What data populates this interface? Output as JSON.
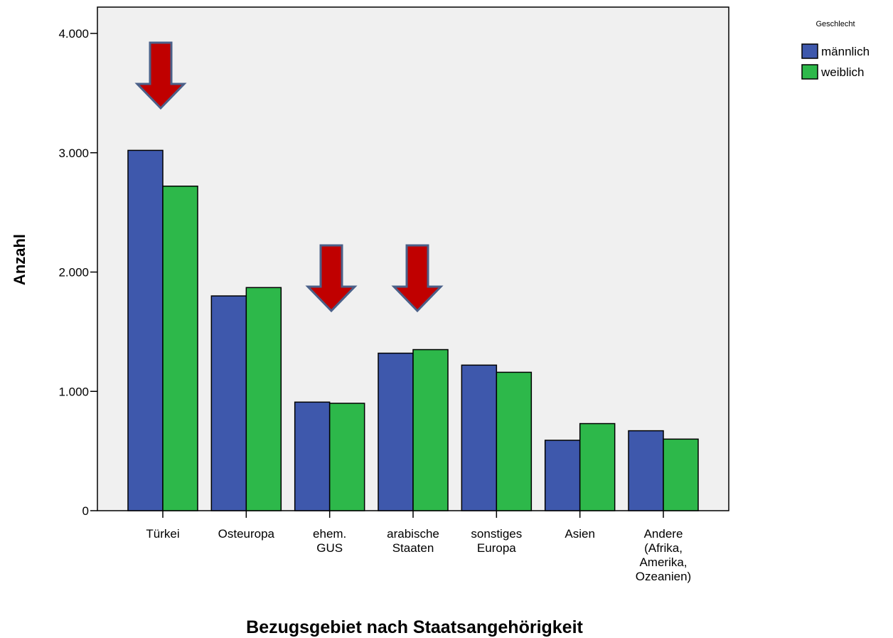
{
  "chart_data": {
    "type": "bar",
    "x_label": "Bezugsgebiet nach Staatsangehörigkeit",
    "y_label": "Anzahl",
    "legend_title": "Geschlecht",
    "categories": [
      "Türkei",
      "Osteuropa",
      "ehem.\nGUS",
      "arabische\nStaaten",
      "sonstiges\nEuropa",
      "Asien",
      "Andere\n(Afrika,\nAmerika,\nOzeanien)"
    ],
    "series": [
      {
        "name": "männlich",
        "color": "#3e58ac",
        "values": [
          3020,
          1800,
          910,
          1320,
          1220,
          590,
          670
        ]
      },
      {
        "name": "weiblich",
        "color": "#2db84a",
        "values": [
          2720,
          1870,
          900,
          1350,
          1160,
          730,
          600
        ]
      }
    ],
    "ylim": [
      0,
      4000
    ],
    "yticks": [
      0,
      {
        "value": 1000,
        "label": "1.000"
      },
      {
        "value": 2000,
        "label": "2.000"
      },
      {
        "value": 3000,
        "label": "3.000"
      },
      {
        "value": 4000,
        "label": "4.000"
      }
    ],
    "legend_position": "right"
  }
}
